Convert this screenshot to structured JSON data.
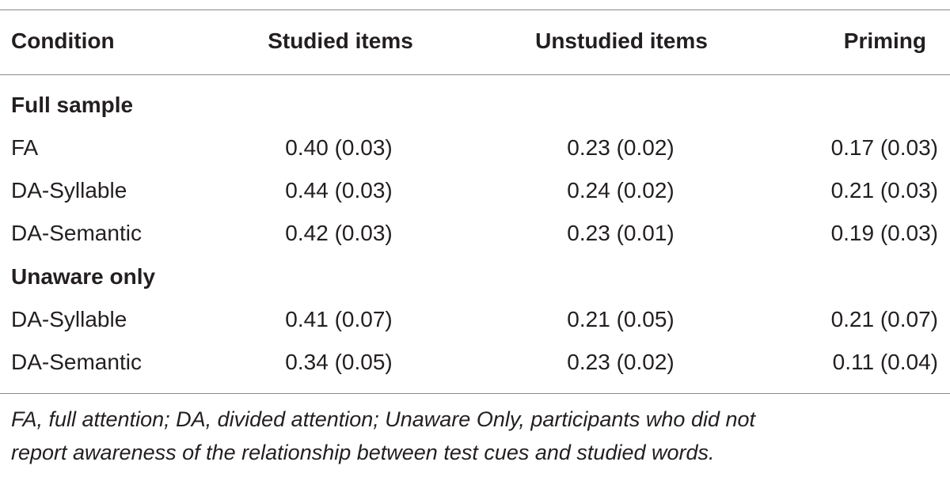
{
  "table": {
    "columns": [
      "Condition",
      "Studied items",
      "Unstudied items",
      "Priming"
    ],
    "sections": [
      {
        "title": "Full sample",
        "rows": [
          [
            "FA",
            "0.40 (0.03)",
            "0.23 (0.02)",
            "0.17 (0.03)"
          ],
          [
            "DA-Syllable",
            "0.44 (0.03)",
            "0.24 (0.02)",
            "0.21 (0.03)"
          ],
          [
            "DA-Semantic",
            "0.42 (0.03)",
            "0.23 (0.01)",
            "0.19 (0.03)"
          ]
        ]
      },
      {
        "title": "Unaware only",
        "rows": [
          [
            "DA-Syllable",
            "0.41 (0.07)",
            "0.21 (0.05)",
            "0.21 (0.07)"
          ],
          [
            "DA-Semantic",
            "0.34 (0.05)",
            "0.23 (0.02)",
            "0.11 (0.04)"
          ]
        ]
      }
    ]
  },
  "footnote": [
    "FA, full attention; DA, divided attention; Unaware Only, participants who did not",
    "report awareness of the relationship between test cues and studied words."
  ]
}
